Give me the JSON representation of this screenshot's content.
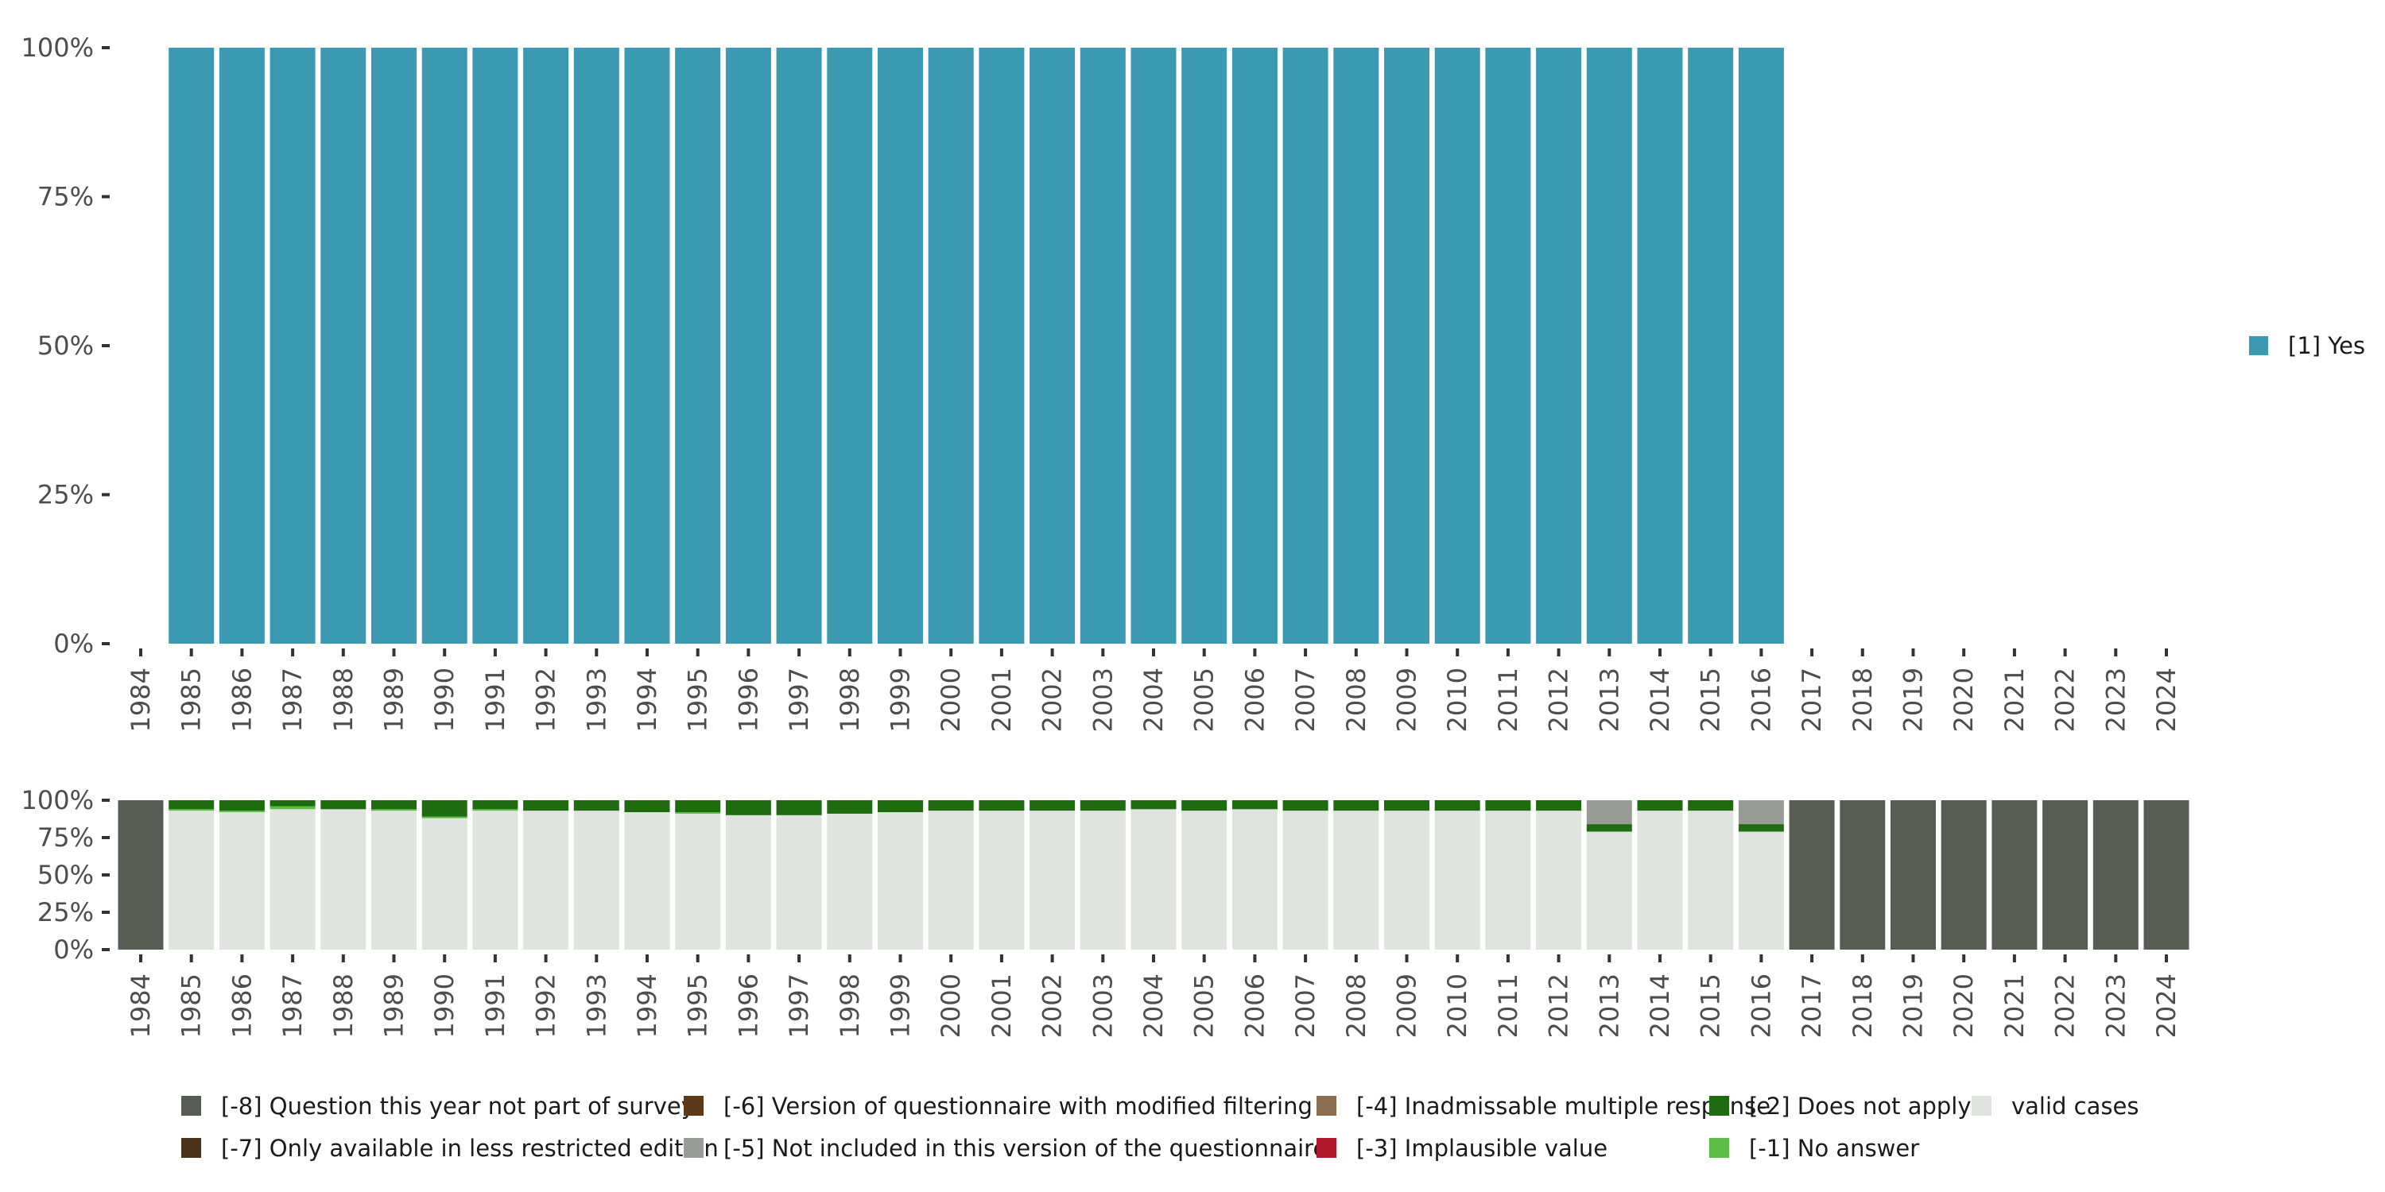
{
  "chart_data": [
    {
      "type": "bar",
      "name": "main-chart",
      "stacked": true,
      "categories": [
        "1984",
        "1985",
        "1986",
        "1987",
        "1988",
        "1989",
        "1990",
        "1991",
        "1992",
        "1993",
        "1994",
        "1995",
        "1996",
        "1997",
        "1998",
        "1999",
        "2000",
        "2001",
        "2002",
        "2003",
        "2004",
        "2005",
        "2006",
        "2007",
        "2008",
        "2009",
        "2010",
        "2011",
        "2012",
        "2013",
        "2014",
        "2015",
        "2016",
        "2017",
        "2018",
        "2019",
        "2020",
        "2021",
        "2022",
        "2023",
        "2024"
      ],
      "y_ticks": [
        "0%",
        "25%",
        "50%",
        "75%",
        "100%"
      ],
      "ylim": [
        0,
        100
      ],
      "grid": false,
      "legend_position": "right",
      "series": [
        {
          "name": "[1] Yes",
          "color": "#3b9ab2",
          "values": [
            null,
            100,
            100,
            100,
            100,
            100,
            100,
            100,
            100,
            100,
            100,
            100,
            100,
            100,
            100,
            100,
            100,
            100,
            100,
            100,
            100,
            100,
            100,
            100,
            100,
            100,
            100,
            100,
            100,
            100,
            100,
            100,
            100,
            null,
            null,
            null,
            null,
            null,
            null,
            null,
            null
          ]
        }
      ]
    },
    {
      "type": "bar",
      "name": "missing-chart",
      "stacked": true,
      "categories": [
        "1984",
        "1985",
        "1986",
        "1987",
        "1988",
        "1989",
        "1990",
        "1991",
        "1992",
        "1993",
        "1994",
        "1995",
        "1996",
        "1997",
        "1998",
        "1999",
        "2000",
        "2001",
        "2002",
        "2003",
        "2004",
        "2005",
        "2006",
        "2007",
        "2008",
        "2009",
        "2010",
        "2011",
        "2012",
        "2013",
        "2014",
        "2015",
        "2016",
        "2017",
        "2018",
        "2019",
        "2020",
        "2021",
        "2022",
        "2023",
        "2024"
      ],
      "y_ticks": [
        "0%",
        "25%",
        "50%",
        "75%",
        "100%"
      ],
      "ylim": [
        0,
        100
      ],
      "grid": false,
      "legend_position": "bottom",
      "series": [
        {
          "name": "valid cases",
          "color": "#e0e4df",
          "values": [
            0,
            93,
            92,
            94,
            94,
            93,
            88,
            93,
            93,
            93,
            92,
            91,
            90,
            90,
            91,
            92,
            93,
            93,
            93,
            93,
            94,
            93,
            94,
            93,
            93,
            93,
            93,
            93,
            93,
            79,
            93,
            93,
            79,
            0,
            0,
            0,
            0,
            0,
            0,
            0,
            0
          ]
        },
        {
          "name": "[-1] No answer",
          "color": "#5bbd44",
          "values": [
            0,
            1,
            1,
            2,
            0,
            1,
            1,
            1,
            0,
            0,
            0,
            1,
            0,
            0,
            0,
            0,
            0,
            0,
            0,
            0,
            0,
            0,
            0,
            0,
            0,
            0,
            0,
            0,
            0,
            0,
            0,
            0,
            0,
            0,
            0,
            0,
            0,
            0,
            0,
            0,
            0
          ]
        },
        {
          "name": "[-2] Does not apply",
          "color": "#1e6b10",
          "values": [
            0,
            6,
            7,
            4,
            6,
            6,
            11,
            6,
            7,
            7,
            8,
            8,
            10,
            10,
            9,
            8,
            7,
            7,
            7,
            7,
            6,
            7,
            6,
            7,
            7,
            7,
            7,
            7,
            7,
            5,
            7,
            7,
            5,
            0,
            0,
            0,
            0,
            0,
            0,
            0,
            0
          ]
        },
        {
          "name": "[-3] Implausible value",
          "color": "#b2182b",
          "values": [
            0,
            0,
            0,
            0,
            0,
            0,
            0,
            0,
            0,
            0,
            0,
            0,
            0,
            0,
            0,
            0,
            0,
            0,
            0,
            0,
            0,
            0,
            0,
            0,
            0,
            0,
            0,
            0,
            0,
            0,
            0,
            0,
            0,
            0,
            0,
            0,
            0,
            0,
            0,
            0,
            0
          ]
        },
        {
          "name": "[-4] Inadmissable multiple response",
          "color": "#8c6d4f",
          "values": [
            0,
            0,
            0,
            0,
            0,
            0,
            0,
            0,
            0,
            0,
            0,
            0,
            0,
            0,
            0,
            0,
            0,
            0,
            0,
            0,
            0,
            0,
            0,
            0,
            0,
            0,
            0,
            0,
            0,
            0,
            0,
            0,
            0,
            0,
            0,
            0,
            0,
            0,
            0,
            0,
            0
          ]
        },
        {
          "name": "[-5] Not included in this version of the questionnaire",
          "color": "#999c96",
          "values": [
            0,
            0,
            0,
            0,
            0,
            0,
            0,
            0,
            0,
            0,
            0,
            0,
            0,
            0,
            0,
            0,
            0,
            0,
            0,
            0,
            0,
            0,
            0,
            0,
            0,
            0,
            0,
            0,
            0,
            16,
            0,
            0,
            16,
            0,
            0,
            0,
            0,
            0,
            0,
            0,
            0
          ]
        },
        {
          "name": "[-6] Version of questionnaire with modified filtering",
          "color": "#5c3a18",
          "values": [
            0,
            0,
            0,
            0,
            0,
            0,
            0,
            0,
            0,
            0,
            0,
            0,
            0,
            0,
            0,
            0,
            0,
            0,
            0,
            0,
            0,
            0,
            0,
            0,
            0,
            0,
            0,
            0,
            0,
            0,
            0,
            0,
            0,
            0,
            0,
            0,
            0,
            0,
            0,
            0,
            0
          ]
        },
        {
          "name": "[-7] Only available in less restricted edition",
          "color": "#4a3117",
          "values": [
            0,
            0,
            0,
            0,
            0,
            0,
            0,
            0,
            0,
            0,
            0,
            0,
            0,
            0,
            0,
            0,
            0,
            0,
            0,
            0,
            0,
            0,
            0,
            0,
            0,
            0,
            0,
            0,
            0,
            0,
            0,
            0,
            0,
            0,
            0,
            0,
            0,
            0,
            0,
            0,
            0
          ]
        },
        {
          "name": "[-8] Question this year not part of survey",
          "color": "#575c55",
          "values": [
            100,
            0,
            0,
            0,
            0,
            0,
            0,
            0,
            0,
            0,
            0,
            0,
            0,
            0,
            0,
            0,
            0,
            0,
            0,
            0,
            0,
            0,
            0,
            0,
            0,
            0,
            0,
            0,
            0,
            0,
            0,
            0,
            0,
            100,
            100,
            100,
            100,
            100,
            100,
            100,
            100
          ]
        }
      ],
      "legend_order": [
        "[-8] Question this year not part of survey",
        "[-7] Only available in less restricted edition",
        "[-6] Version of questionnaire with modified filtering",
        "[-5] Not included in this version of the questionnaire",
        "[-4] Inadmissable multiple response",
        "[-3] Implausible value",
        "[-2] Does not apply",
        "[-1] No answer",
        "valid cases"
      ]
    }
  ]
}
